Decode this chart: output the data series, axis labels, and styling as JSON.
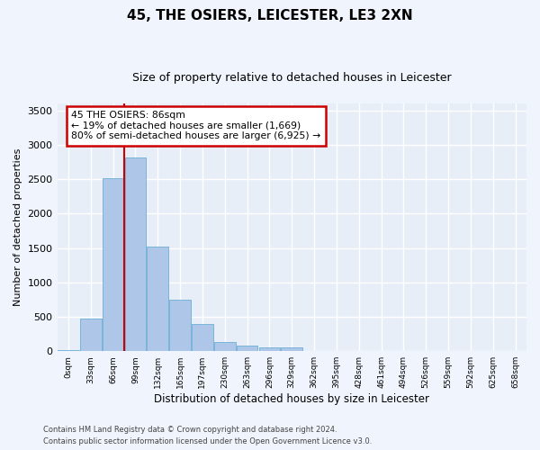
{
  "title": "45, THE OSIERS, LEICESTER, LE3 2XN",
  "subtitle": "Size of property relative to detached houses in Leicester",
  "xlabel": "Distribution of detached houses by size in Leicester",
  "ylabel": "Number of detached properties",
  "bar_color": "#aec6e8",
  "bar_edge_color": "#6baed6",
  "vline_color": "#cc0000",
  "annotation_text": "45 THE OSIERS: 86sqm\n← 19% of detached houses are smaller (1,669)\n80% of semi-detached houses are larger (6,925) →",
  "annotation_box_color": "#cc0000",
  "categories": [
    "0sqm",
    "33sqm",
    "66sqm",
    "99sqm",
    "132sqm",
    "165sqm",
    "197sqm",
    "230sqm",
    "263sqm",
    "296sqm",
    "329sqm",
    "362sqm",
    "395sqm",
    "428sqm",
    "461sqm",
    "494sqm",
    "526sqm",
    "559sqm",
    "592sqm",
    "625sqm",
    "658sqm"
  ],
  "bar_heights": [
    20,
    480,
    2510,
    2820,
    1520,
    750,
    390,
    140,
    75,
    55,
    55,
    0,
    0,
    0,
    0,
    0,
    0,
    0,
    0,
    0,
    0
  ],
  "ylim": [
    0,
    3600
  ],
  "yticks": [
    0,
    500,
    1000,
    1500,
    2000,
    2500,
    3000,
    3500
  ],
  "background_color": "#e8eef8",
  "grid_color": "#ffffff",
  "fig_facecolor": "#f0f4fc",
  "footer_line1": "Contains HM Land Registry data © Crown copyright and database right 2024.",
  "footer_line2": "Contains public sector information licensed under the Open Government Licence v3.0."
}
